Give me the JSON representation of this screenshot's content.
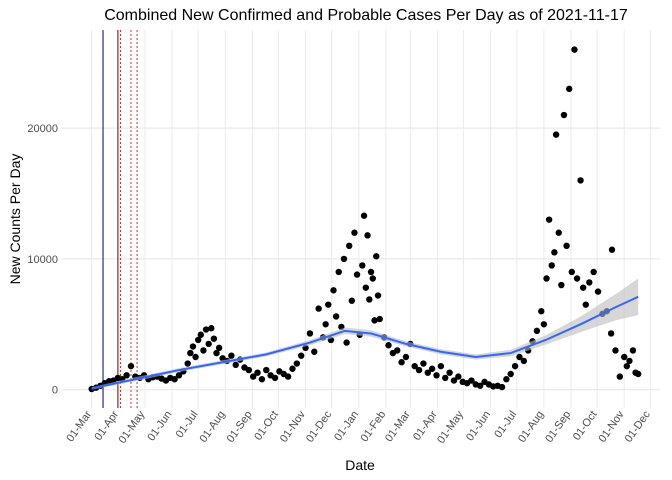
{
  "chart_data": {
    "type": "scatter",
    "title": "Combined New Confirmed and Probable Cases Per Day as of 2021-11-17",
    "x_label": "Date",
    "y_label": "New Counts Per Day",
    "xlim": [
      -34,
      651
    ],
    "ylim": [
      -1400,
      27500
    ],
    "xticks": [
      {
        "value": 0,
        "label": "01-Mar"
      },
      {
        "value": 31,
        "label": "01-Apr"
      },
      {
        "value": 61,
        "label": "01-May"
      },
      {
        "value": 92,
        "label": "01-Jun"
      },
      {
        "value": 122,
        "label": "01-Jul"
      },
      {
        "value": 153,
        "label": "01-Aug"
      },
      {
        "value": 184,
        "label": "01-Sep"
      },
      {
        "value": 214,
        "label": "01-Oct"
      },
      {
        "value": 245,
        "label": "01-Nov"
      },
      {
        "value": 275,
        "label": "01-Dec"
      },
      {
        "value": 306,
        "label": "01-Jan"
      },
      {
        "value": 337,
        "label": "01-Feb"
      },
      {
        "value": 365,
        "label": "01-Mar"
      },
      {
        "value": 396,
        "label": "01-Apr"
      },
      {
        "value": 426,
        "label": "01-May"
      },
      {
        "value": 457,
        "label": "01-Jun"
      },
      {
        "value": 487,
        "label": "01-Jul"
      },
      {
        "value": 518,
        "label": "01-Aug"
      },
      {
        "value": 549,
        "label": "01-Sep"
      },
      {
        "value": 579,
        "label": "01-Oct"
      },
      {
        "value": 610,
        "label": "01-Nov"
      },
      {
        "value": 640,
        "label": "01-Dec"
      }
    ],
    "yticks": [
      0,
      10000,
      20000
    ],
    "grid": true,
    "series": [
      {
        "color": "#000000",
        "x": [
          0,
          5,
          10,
          15,
          20,
          25,
          30,
          35,
          40,
          45,
          50,
          55,
          60,
          65,
          70,
          75,
          80,
          85,
          90,
          95,
          100,
          105,
          110,
          113,
          116,
          119,
          122,
          125,
          128,
          131,
          134,
          137,
          140,
          143,
          146,
          150,
          155,
          160,
          165,
          170,
          175,
          180,
          185,
          190,
          195,
          200,
          205,
          210,
          215,
          220,
          225,
          230,
          235,
          240,
          245,
          250,
          255,
          260,
          265,
          268,
          271,
          274,
          277,
          280,
          283,
          286,
          289,
          292,
          295,
          298,
          301,
          304,
          307,
          310,
          312,
          314,
          316,
          318,
          320,
          322,
          324,
          326,
          328,
          330,
          335,
          340,
          345,
          350,
          355,
          360,
          365,
          370,
          375,
          380,
          385,
          390,
          395,
          400,
          405,
          410,
          415,
          420,
          425,
          430,
          435,
          440,
          445,
          450,
          455,
          460,
          465,
          470,
          475,
          480,
          485,
          490,
          495,
          500,
          505,
          510,
          515,
          518,
          521,
          524,
          527,
          530,
          532,
          535,
          538,
          541,
          544,
          547,
          550,
          553,
          556,
          560,
          563,
          566,
          570,
          575,
          580,
          585,
          590,
          595,
          596,
          600,
          605,
          610,
          613,
          616,
          620,
          623,
          626
        ],
        "values": [
          50,
          150,
          300,
          500,
          650,
          700,
          900,
          800,
          1100,
          1800,
          1000,
          900,
          1100,
          800,
          950,
          1000,
          850,
          700,
          900,
          800,
          1100,
          1400,
          2000,
          2800,
          3300,
          2500,
          3800,
          4200,
          3000,
          4600,
          3500,
          4700,
          3900,
          2800,
          3200,
          2400,
          2200,
          2600,
          1900,
          2300,
          1700,
          1500,
          1000,
          1300,
          800,
          1500,
          1100,
          900,
          1400,
          1200,
          1000,
          1600,
          2000,
          2600,
          3200,
          4300,
          2900,
          6200,
          4000,
          5000,
          6500,
          3800,
          7600,
          5600,
          9000,
          4800,
          10000,
          3600,
          11000,
          6800,
          12000,
          8800,
          4200,
          9500,
          13300,
          7800,
          11800,
          6900,
          9000,
          8500,
          5300,
          10200,
          7200,
          5400,
          4000,
          3400,
          2800,
          3000,
          2100,
          2500,
          3500,
          1800,
          1500,
          2000,
          1300,
          1600,
          1100,
          1800,
          900,
          1300,
          700,
          1000,
          600,
          500,
          700,
          400,
          300,
          600,
          400,
          250,
          300,
          200,
          800,
          1200,
          1800,
          2500,
          2200,
          3000,
          3700,
          4500,
          6000,
          5000,
          8500,
          13000,
          9500,
          10500,
          19500,
          12000,
          8000,
          21000,
          11000,
          23000,
          9000,
          26000,
          8500,
          16000,
          7800,
          6500,
          8200,
          9000,
          7500,
          5800,
          6000,
          4300,
          10700,
          3000,
          1000,
          2500,
          1800,
          2200,
          3000,
          1300,
          1200
        ]
      }
    ],
    "smooth": {
      "color": "#3366ff",
      "band_color": "#bdbdbd",
      "x": [
        0,
        50,
        100,
        150,
        200,
        250,
        290,
        320,
        360,
        400,
        440,
        480,
        520,
        560,
        600,
        626
      ],
      "values": [
        100,
        800,
        1500,
        2100,
        2700,
        3600,
        4500,
        4300,
        3500,
        2900,
        2500,
        2800,
        3800,
        5000,
        6300,
        7100
      ],
      "lower": [
        0,
        650,
        1350,
        1950,
        2550,
        3400,
        4250,
        4050,
        3300,
        2700,
        2300,
        2550,
        3450,
        4400,
        5300,
        5700
      ],
      "upper": [
        200,
        950,
        1650,
        2250,
        2850,
        3800,
        4750,
        4550,
        3700,
        3100,
        2700,
        3050,
        4150,
        5600,
        7300,
        8500
      ]
    },
    "vlines": [
      {
        "x": 13,
        "color": "#00008b",
        "dashed": false
      },
      {
        "x": 30,
        "color": "#8b0000",
        "dashed": false
      },
      {
        "x": 33,
        "color": "#cc3333",
        "dashed": true
      },
      {
        "x": 45,
        "color": "#cc3333",
        "dashed": true
      },
      {
        "x": 52,
        "color": "#cc3333",
        "dashed": true
      }
    ]
  }
}
